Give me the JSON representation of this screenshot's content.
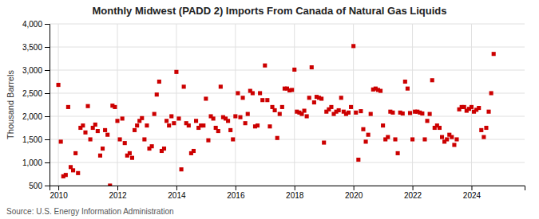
{
  "chart_data": {
    "type": "scatter",
    "title": "Monthly Midwest (PADD 2) Imports From Canada of Natural Gas Liquids",
    "y_label": "Thousand Barrels",
    "annotations": [
      "Source: U.S. Energy Information Administration"
    ],
    "color": "#cc0000",
    "marker": "square",
    "grid": true,
    "xlim": [
      2009.7,
      2025.8
    ],
    "xticks": [
      2010,
      2012,
      2014,
      2016,
      2018,
      2020,
      2022,
      2024
    ],
    "ylim": [
      500,
      4000
    ],
    "yticks": [
      500,
      {
        "value": 1000,
        "label": "1,000"
      },
      {
        "value": 1500,
        "label": "1,500"
      },
      {
        "value": 2000,
        "label": "2,000"
      },
      {
        "value": 2500,
        "label": "2,500"
      },
      {
        "value": 3000,
        "label": "3,000"
      },
      {
        "value": 3500,
        "label": "3,500"
      },
      {
        "value": 4000,
        "label": "4,000"
      }
    ],
    "x": [
      2010.0,
      2010.083,
      2010.167,
      2010.25,
      2010.333,
      2010.417,
      2010.5,
      2010.583,
      2010.667,
      2010.75,
      2010.833,
      2010.917,
      2011.0,
      2011.083,
      2011.167,
      2011.25,
      2011.333,
      2011.417,
      2011.5,
      2011.583,
      2011.667,
      2011.75,
      2011.833,
      2011.917,
      2012.0,
      2012.083,
      2012.167,
      2012.25,
      2012.333,
      2012.417,
      2012.5,
      2012.583,
      2012.667,
      2012.75,
      2012.833,
      2012.917,
      2013.0,
      2013.083,
      2013.167,
      2013.25,
      2013.333,
      2013.417,
      2013.5,
      2013.583,
      2013.667,
      2013.75,
      2013.833,
      2013.917,
      2014.0,
      2014.083,
      2014.167,
      2014.25,
      2014.333,
      2014.417,
      2014.5,
      2014.583,
      2014.667,
      2014.75,
      2014.833,
      2014.917,
      2015.0,
      2015.083,
      2015.167,
      2015.25,
      2015.333,
      2015.417,
      2015.5,
      2015.583,
      2015.667,
      2015.75,
      2015.833,
      2015.917,
      2016.0,
      2016.083,
      2016.167,
      2016.25,
      2016.333,
      2016.417,
      2016.5,
      2016.583,
      2016.667,
      2016.75,
      2016.833,
      2016.917,
      2017.0,
      2017.083,
      2017.167,
      2017.25,
      2017.333,
      2017.417,
      2017.5,
      2017.583,
      2017.667,
      2017.75,
      2017.833,
      2017.917,
      2018.0,
      2018.083,
      2018.167,
      2018.25,
      2018.333,
      2018.417,
      2018.5,
      2018.583,
      2018.667,
      2018.75,
      2018.833,
      2018.917,
      2019.0,
      2019.083,
      2019.167,
      2019.25,
      2019.333,
      2019.417,
      2019.5,
      2019.583,
      2019.667,
      2019.75,
      2019.833,
      2019.917,
      2020.0,
      2020.083,
      2020.167,
      2020.25,
      2020.333,
      2020.417,
      2020.5,
      2020.583,
      2020.667,
      2020.75,
      2020.833,
      2020.917,
      2021.0,
      2021.083,
      2021.167,
      2021.25,
      2021.333,
      2021.417,
      2021.5,
      2021.583,
      2021.667,
      2021.75,
      2021.833,
      2021.917,
      2022.0,
      2022.083,
      2022.167,
      2022.25,
      2022.333,
      2022.417,
      2022.5,
      2022.583,
      2022.667,
      2022.75,
      2022.833,
      2022.917,
      2023.0,
      2023.083,
      2023.167,
      2023.25,
      2023.333,
      2023.417,
      2023.5,
      2023.583,
      2023.667,
      2023.75,
      2023.833,
      2023.917,
      2024.0,
      2024.083,
      2024.167,
      2024.25,
      2024.333,
      2024.417,
      2024.5,
      2024.583,
      2024.667,
      2024.75
    ],
    "values": [
      2680,
      1450,
      700,
      730,
      2200,
      900,
      830,
      1200,
      770,
      1750,
      1800,
      1650,
      2220,
      1500,
      1750,
      1820,
      1680,
      1150,
      1300,
      1700,
      1600,
      500,
      2230,
      2200,
      1900,
      1500,
      1950,
      1420,
      1150,
      1200,
      1100,
      1700,
      1800,
      1900,
      1960,
      1500,
      1800,
      1300,
      1350,
      2050,
      2470,
      2750,
      1250,
      1300,
      1900,
      1800,
      2000,
      1850,
      2960,
      1950,
      850,
      2640,
      1850,
      1800,
      1200,
      1250,
      1900,
      1750,
      1800,
      1800,
      2380,
      1480,
      2000,
      1950,
      1750,
      1680,
      2640,
      1980,
      1950,
      1900,
      1700,
      1500,
      2000,
      2500,
      1980,
      2400,
      1850,
      2050,
      2550,
      2500,
      1780,
      1800,
      2500,
      2350,
      3100,
      2350,
      1780,
      2200,
      2130,
      1530,
      2050,
      2200,
      2600,
      2600,
      2560,
      2570,
      3010,
      2100,
      2080,
      2050,
      2120,
      2000,
      2400,
      3060,
      2300,
      2420,
      2400,
      2380,
      1430,
      2100,
      2150,
      2200,
      2050,
      2100,
      2130,
      2400,
      2100,
      2050,
      2080,
      2200,
      3520,
      2080,
      1060,
      2110,
      1720,
      1450,
      1600,
      2050,
      2580,
      2600,
      2570,
      2550,
      1800,
      1500,
      1550,
      2100,
      2080,
      1500,
      1200,
      2080,
      2060,
      2750,
      2600,
      2070,
      1500,
      2100,
      2100,
      2080,
      2060,
      1500,
      1900,
      2050,
      2780,
      1750,
      1800,
      1750,
      1550,
      1450,
      1500,
      1600,
      1550,
      1380,
      1500,
      2150,
      2200,
      2200,
      2120,
      2160,
      2200,
      2100,
      2140,
      2180,
      1700,
      1550,
      1750,
      2100,
      2500,
      3350
    ]
  }
}
